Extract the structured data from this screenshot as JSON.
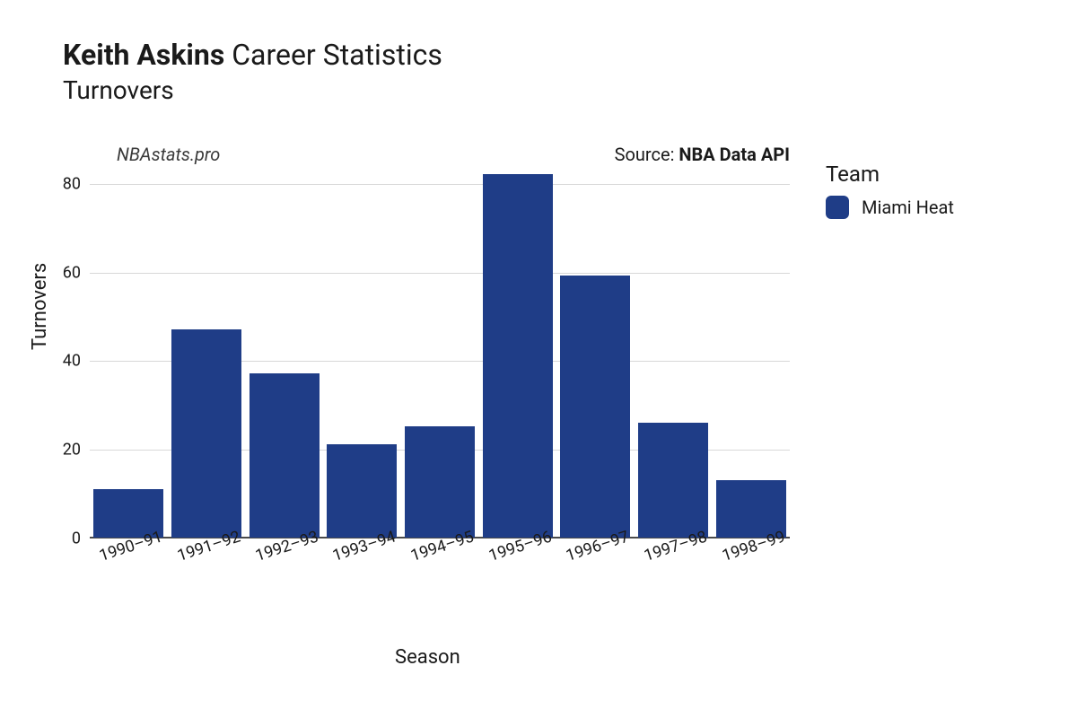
{
  "title": {
    "bold": "Keith Askins",
    "rest": "Career Statistics",
    "subtitle": "Turnovers"
  },
  "watermark": "NBAstats.pro",
  "source": {
    "prefix": "Source: ",
    "bold": "NBA Data API"
  },
  "chart": {
    "type": "bar",
    "categories": [
      "1990–91",
      "1991–92",
      "1992–93",
      "1993–94",
      "1994–95",
      "1995–96",
      "1996–97",
      "1997–98",
      "1998–99"
    ],
    "values": [
      11,
      47,
      37,
      21,
      25,
      82,
      59,
      26,
      13
    ],
    "bar_color": "#1f3d87",
    "background_color": "#ffffff",
    "grid_color": "#d8d8d8",
    "axis_color": "#4a4a4a",
    "text_color": "#1a1a1a",
    "ylim": [
      0,
      85
    ],
    "yticks": [
      0,
      20,
      40,
      60,
      80
    ],
    "xlabel": "Season",
    "ylabel": "Turnovers",
    "xlabel_fontsize": 22,
    "ylabel_fontsize": 22,
    "tick_fontsize": 18,
    "title_fontsize": 32,
    "subtitle_fontsize": 28,
    "bar_width_ratio": 0.9,
    "x_tick_rotation_deg": -18
  },
  "legend": {
    "title": "Team",
    "items": [
      {
        "label": "Miami Heat",
        "color": "#1f3d87"
      }
    ]
  }
}
